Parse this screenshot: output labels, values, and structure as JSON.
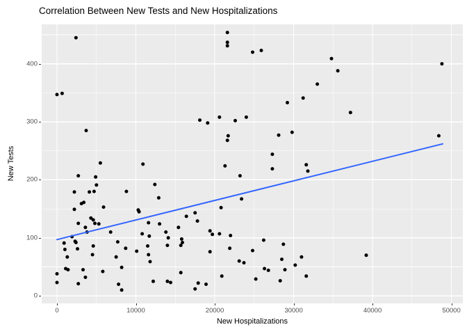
{
  "title": "Correlation Between New Tests and New Hospitalizations",
  "chart_data": {
    "type": "scatter",
    "title": "Correlation Between New Tests and New Hospitalizations",
    "xlabel": "New Hospitalizations",
    "ylabel": "New Tests",
    "x_ticks": [
      0,
      10000,
      20000,
      30000,
      40000,
      50000
    ],
    "y_ticks": [
      0,
      100,
      200,
      300,
      400
    ],
    "x_minor_step": 5000,
    "y_minor_step": 50,
    "xlim": [
      -1940,
      51450
    ],
    "ylim": [
      -13,
      468
    ],
    "legend": "none",
    "grid": true,
    "panel_bg": "#EBEBEB",
    "grid_color": "#FFFFFF",
    "point_color": "#000000",
    "tick_label_color": "#4d4d4d",
    "trend_color": "#3366FF",
    "trend_line": {
      "x1": 0,
      "y1": 97,
      "x2": 48900,
      "y2": 262
    },
    "points": [
      [
        2400,
        445
      ],
      [
        0,
        347
      ],
      [
        650,
        349
      ],
      [
        3700,
        285
      ],
      [
        21600,
        454
      ],
      [
        21600,
        437
      ],
      [
        21600,
        431
      ],
      [
        24800,
        420
      ],
      [
        25900,
        423
      ],
      [
        33000,
        365
      ],
      [
        31200,
        341
      ],
      [
        29200,
        333
      ],
      [
        18100,
        303
      ],
      [
        19100,
        298
      ],
      [
        20600,
        308
      ],
      [
        22600,
        302
      ],
      [
        24000,
        308
      ],
      [
        21700,
        276
      ],
      [
        21600,
        268
      ],
      [
        28100,
        277
      ],
      [
        29800,
        282
      ],
      [
        27300,
        244
      ],
      [
        34800,
        409
      ],
      [
        35600,
        388
      ],
      [
        48800,
        400
      ],
      [
        37200,
        316
      ],
      [
        48400,
        276
      ],
      [
        5500,
        229
      ],
      [
        10900,
        227
      ],
      [
        2700,
        207
      ],
      [
        4900,
        205
      ],
      [
        5000,
        191
      ],
      [
        12400,
        192
      ],
      [
        2200,
        179
      ],
      [
        4100,
        179
      ],
      [
        4700,
        180
      ],
      [
        8800,
        180
      ],
      [
        12900,
        169
      ],
      [
        3100,
        159
      ],
      [
        3400,
        161
      ],
      [
        2200,
        149
      ],
      [
        5900,
        153
      ],
      [
        4300,
        134
      ],
      [
        4600,
        131
      ],
      [
        10300,
        148
      ],
      [
        10400,
        145
      ],
      [
        2700,
        125
      ],
      [
        4800,
        125
      ],
      [
        5300,
        124
      ],
      [
        3600,
        118
      ],
      [
        3800,
        110
      ],
      [
        11600,
        126
      ],
      [
        13000,
        124
      ],
      [
        15400,
        118
      ],
      [
        6800,
        110
      ],
      [
        10800,
        107
      ],
      [
        13800,
        110
      ],
      [
        1900,
        102
      ],
      [
        2300,
        94
      ],
      [
        2400,
        92
      ],
      [
        900,
        91
      ],
      [
        4600,
        86
      ],
      [
        7700,
        93
      ],
      [
        11700,
        103
      ],
      [
        14100,
        100
      ],
      [
        1000,
        80
      ],
      [
        2600,
        81
      ],
      [
        8700,
        82
      ],
      [
        10100,
        77
      ],
      [
        11500,
        86
      ],
      [
        14000,
        87
      ],
      [
        1300,
        67
      ],
      [
        4500,
        71
      ],
      [
        7500,
        67
      ],
      [
        11600,
        71
      ],
      [
        11800,
        59
      ],
      [
        12200,
        25
      ],
      [
        1100,
        47
      ],
      [
        1400,
        45
      ],
      [
        3300,
        45
      ],
      [
        0,
        38
      ],
      [
        5800,
        42
      ],
      [
        8200,
        49
      ],
      [
        3600,
        32
      ],
      [
        0,
        23
      ],
      [
        2700,
        21
      ],
      [
        7800,
        20
      ],
      [
        8200,
        10
      ],
      [
        14000,
        25
      ],
      [
        14400,
        23
      ],
      [
        15800,
        98
      ],
      [
        15900,
        92
      ],
      [
        15700,
        87
      ],
      [
        15700,
        40
      ],
      [
        21300,
        224
      ],
      [
        27300,
        219
      ],
      [
        31600,
        226
      ],
      [
        31800,
        215
      ],
      [
        23200,
        207
      ],
      [
        23400,
        167
      ],
      [
        20800,
        152
      ],
      [
        16400,
        137
      ],
      [
        17500,
        143
      ],
      [
        17800,
        129
      ],
      [
        19400,
        112
      ],
      [
        19700,
        106
      ],
      [
        20600,
        107
      ],
      [
        22000,
        104
      ],
      [
        26200,
        96
      ],
      [
        28700,
        89
      ],
      [
        21900,
        82
      ],
      [
        19400,
        76
      ],
      [
        24800,
        78
      ],
      [
        23100,
        60
      ],
      [
        23700,
        57
      ],
      [
        28500,
        63
      ],
      [
        30200,
        53
      ],
      [
        31000,
        67
      ],
      [
        26300,
        47
      ],
      [
        26800,
        44
      ],
      [
        28900,
        45
      ],
      [
        20900,
        34
      ],
      [
        25200,
        29
      ],
      [
        28300,
        26
      ],
      [
        31600,
        34
      ],
      [
        17900,
        22
      ],
      [
        18900,
        20
      ],
      [
        17500,
        12
      ],
      [
        39200,
        70
      ]
    ]
  }
}
